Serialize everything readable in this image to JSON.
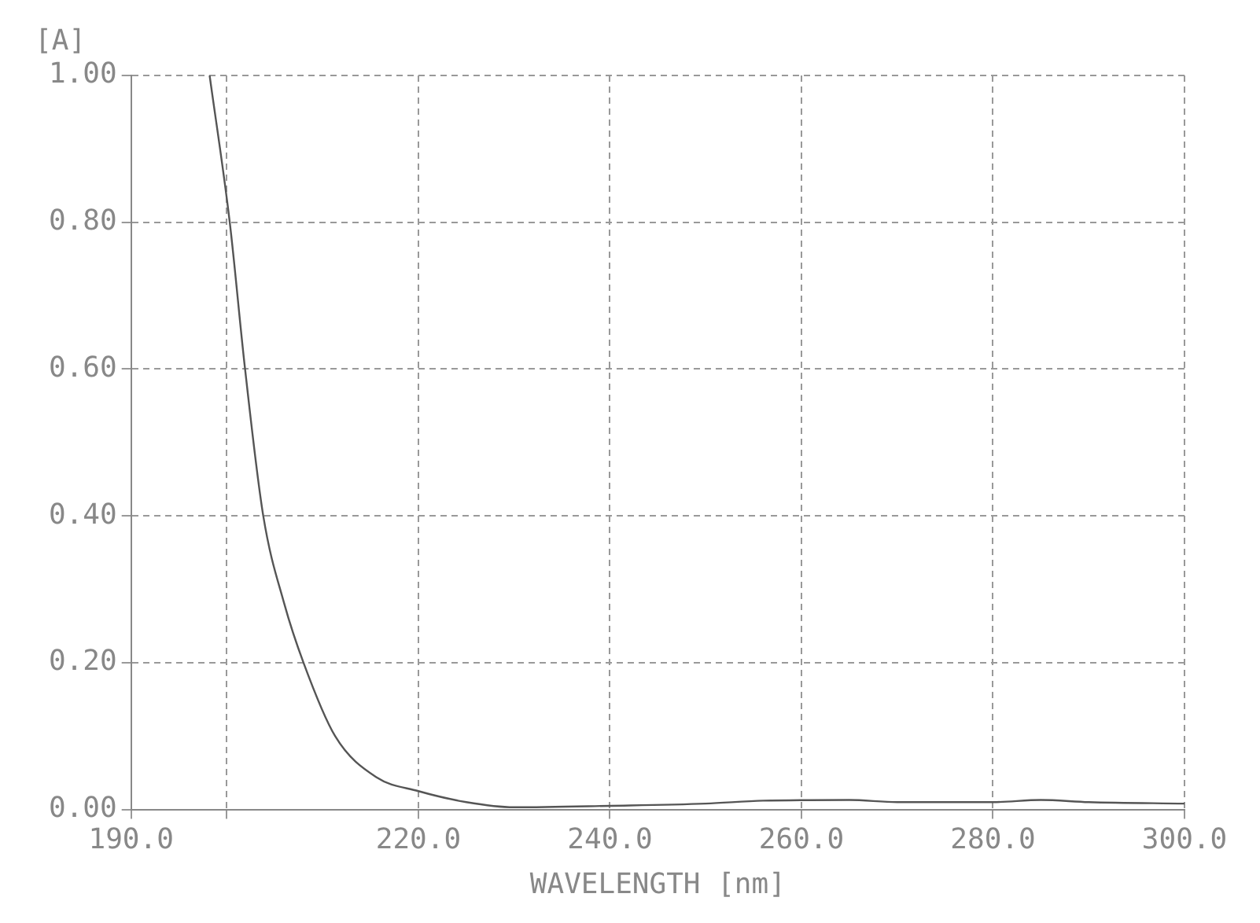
{
  "chart_data": {
    "type": "line",
    "xlabel": "WAVELENGTH [nm]",
    "ylabel": "[A]",
    "x": [
      198.2,
      200.3,
      201.9,
      203.8,
      206,
      208,
      211.3,
      215.6,
      220,
      225,
      230,
      240,
      250,
      256,
      265,
      270,
      280,
      285,
      290,
      300
    ],
    "series": [
      {
        "color": "#555555",
        "values": [
          1.0,
          0.8,
          0.6,
          0.4,
          0.28,
          0.2,
          0.1,
          0.044,
          0.025,
          0.01,
          0.003,
          0.005,
          0.008,
          0.012,
          0.013,
          0.01,
          0.01,
          0.013,
          0.01,
          0.008
        ]
      }
    ],
    "xlim": [
      190,
      300
    ],
    "xticks": [
      {
        "value": 190,
        "label": "190.0"
      },
      {
        "value": 200,
        "label": null
      },
      {
        "value": 220,
        "label": "220.0"
      },
      {
        "value": 240,
        "label": "240.0"
      },
      {
        "value": 260,
        "label": "260.0"
      },
      {
        "value": 280,
        "label": "280.0"
      },
      {
        "value": 300,
        "label": "300.0"
      }
    ],
    "ylim": [
      0,
      1
    ],
    "yticks": [
      {
        "value": 0,
        "label": "0.00"
      },
      {
        "value": 0.2,
        "label": "0.20"
      },
      {
        "value": 0.4,
        "label": "0.40"
      },
      {
        "value": 0.6,
        "label": "0.60"
      },
      {
        "value": 0.8,
        "label": "0.80"
      },
      {
        "value": 1,
        "label": "1.00"
      }
    ],
    "grid": true,
    "line_style": "solid",
    "marker": "none",
    "legend": false
  }
}
